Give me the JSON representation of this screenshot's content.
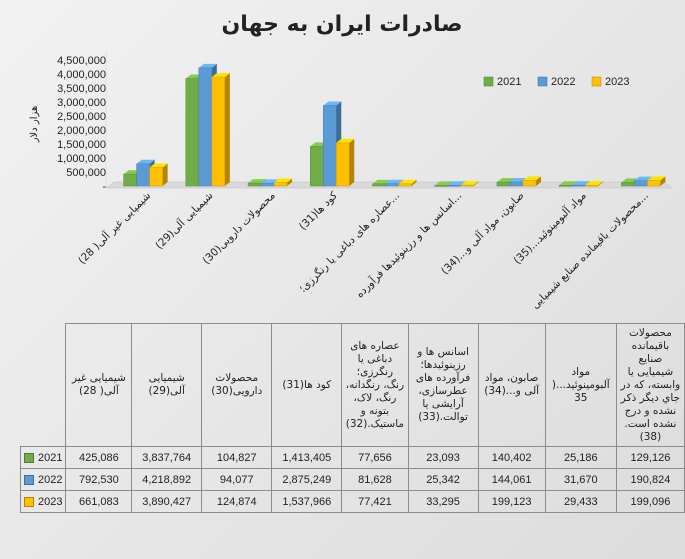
{
  "chart_data": {
    "type": "bar",
    "title": "صادرات ایران به جهان",
    "ylabel": "هزار دلار",
    "ylim": [
      0,
      4500000
    ],
    "yticks": [
      "-",
      "500,000",
      "1,000,000",
      "1,500,000",
      "2,000,000",
      "2,500,000",
      "3,000,000",
      "3,500,000",
      "4,000,000",
      "4,500,000"
    ],
    "legend_position": "top-right",
    "categories": [
      "شیمیایی غیر آلی( 28)",
      "شیمیایی آلی(29)",
      "محصولات دارویی(30)",
      "کود ها(31)",
      "عصاره های دباغی یا رنگرزی؛...",
      "اسانس ها و رزینوئیدها فرآورده...",
      "صابون، مواد آلی و...(34)",
      "مواد آلبومینوئید...(35)",
      "محصولات باقیمانده صنایع شیمیایی..."
    ],
    "table_headers": [
      "شیمیایی غیر آلی( 28)",
      "شیمیایی آلی(29)",
      "محصولات دارویی(30)",
      "کود ها(31)",
      "عصاره های دباغی یا رنگرزی؛ رنگ، رنگدانه، رنگ، لاک، بتونه و ماستیک.(32)",
      "اسانس ها و رزینوئیدها؛ فرآورده های عطرسازی، آرایشی یا توالت.(33)",
      "صابون، مواد آلی و...(34)",
      "مواد آلبومینوئید...( 35",
      "محصولات باقیمانده صنایع شیمیایی یا وابسته، که در جاي ديگر ذکر نشده و درج نشده است.(38)"
    ],
    "series": [
      {
        "name": "2021",
        "color": "#70ad47",
        "values": [
          425086,
          3837764,
          104827,
          1413405,
          77656,
          23093,
          140402,
          25186,
          129126
        ],
        "labels": [
          "425,086",
          "3,837,764",
          "104,827",
          "1,413,405",
          "77,656",
          "23,093",
          "140,402",
          "25,186",
          "129,126"
        ]
      },
      {
        "name": "2022",
        "color": "#5b9bd5",
        "values": [
          792530,
          4218892,
          94077,
          2875249,
          81628,
          25342,
          144061,
          31670,
          190824
        ],
        "labels": [
          "792,530",
          "4,218,892",
          "94,077",
          "2,875,249",
          "81,628",
          "25,342",
          "144,061",
          "31,670",
          "190,824"
        ]
      },
      {
        "name": "2023",
        "color": "#ffc000",
        "values": [
          661083,
          3890427,
          124874,
          1537966,
          77421,
          33295,
          199123,
          29433,
          199096
        ],
        "labels": [
          "661,083",
          "3,890,427",
          "124,874",
          "1,537,966",
          "77,421",
          "33,295",
          "199,123",
          "29,433",
          "199,096"
        ]
      }
    ],
    "grid": false
  }
}
